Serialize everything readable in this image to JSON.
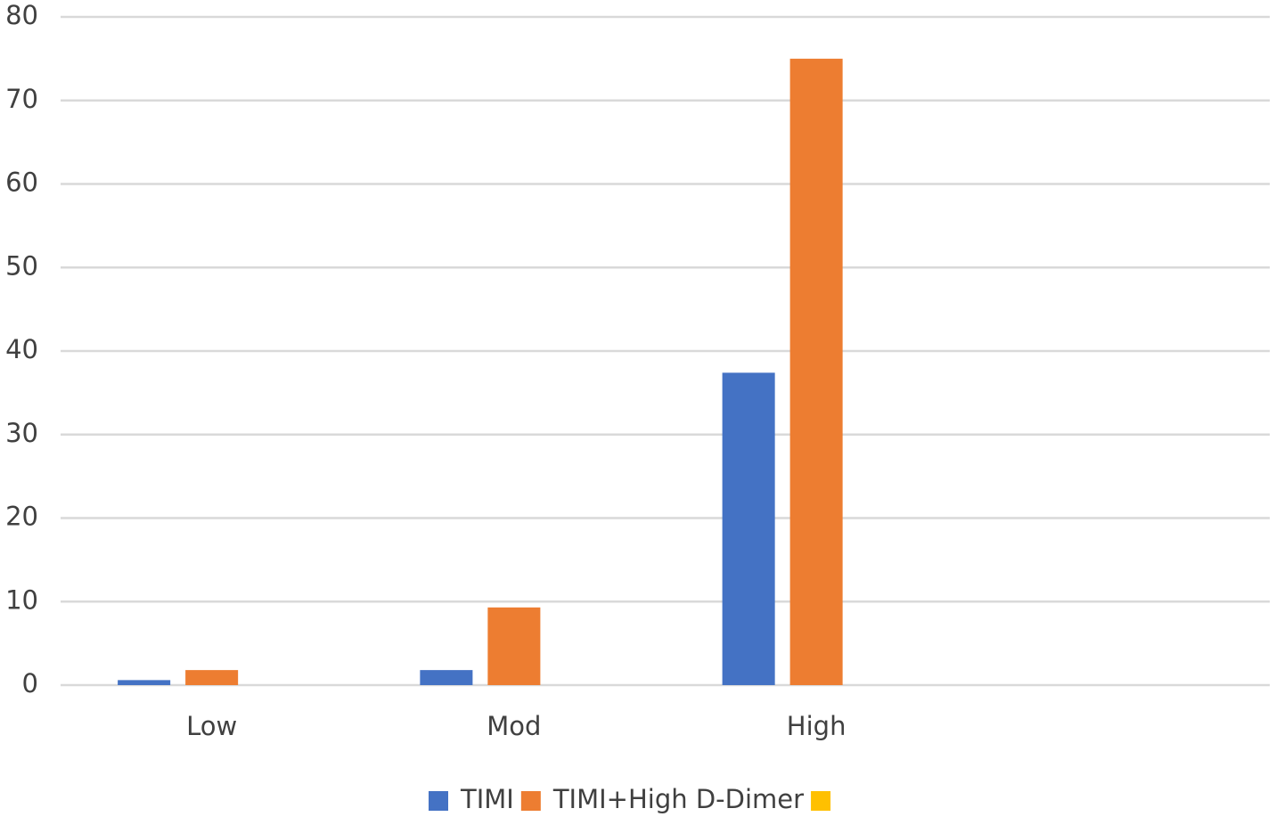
{
  "chart_data": {
    "type": "bar",
    "categories": [
      "Low",
      "Mod",
      "High",
      null
    ],
    "series": [
      {
        "name": "TIMI",
        "color": "#4472c4",
        "values": [
          0.6,
          1.8,
          37.4,
          null
        ]
      },
      {
        "name": "TIMI+High D-Dimer",
        "color": "#ed7d31",
        "values": [
          1.8,
          9.3,
          75.0,
          null
        ]
      },
      {
        "color": "#ffc000",
        "values": [
          null,
          null,
          null,
          null
        ]
      }
    ],
    "ylim": [
      0,
      80
    ],
    "yticks": [
      0,
      10,
      20,
      30,
      40,
      50,
      60,
      70,
      80
    ],
    "grid": true,
    "legend": "bottom"
  }
}
